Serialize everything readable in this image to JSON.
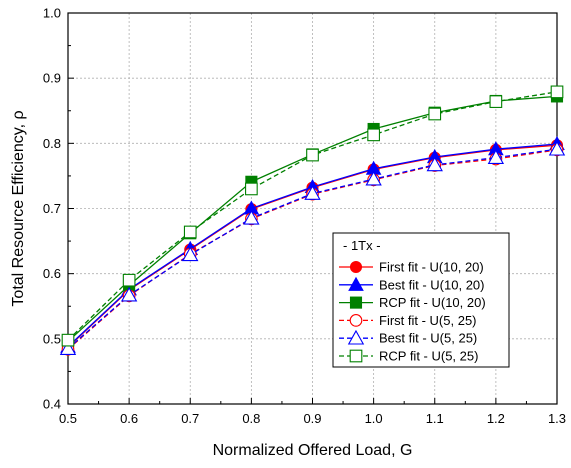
{
  "chart_data": {
    "type": "line",
    "xlabel": "Normalized Offered Load, G",
    "ylabel": "Total Resource Efficiency, ρ",
    "xlim": [
      0.5,
      1.3
    ],
    "ylim": [
      0.4,
      1.0
    ],
    "xticks": [
      "0.5",
      "0.6",
      "0.7",
      "0.8",
      "0.9",
      "1.0",
      "1.1",
      "1.2",
      "1.3"
    ],
    "yticks": [
      "0.4",
      "0.5",
      "0.6",
      "0.7",
      "0.8",
      "0.9",
      "1.0"
    ],
    "grid": true,
    "legend": {
      "title": "- 1Tx -",
      "placement": "lower-right"
    },
    "x": [
      0.5,
      0.6,
      0.7,
      0.8,
      0.9,
      1.0,
      1.1,
      1.2,
      1.3
    ],
    "series": [
      {
        "name": "First fit - U(10, 20)",
        "color": "#ff0000",
        "marker": "circle",
        "filled": true,
        "dashed": false,
        "values": [
          0.487,
          0.575,
          0.637,
          0.699,
          0.732,
          0.76,
          0.778,
          0.79,
          0.797
        ]
      },
      {
        "name": "Best fit - U(10, 20)",
        "color": "#0000ff",
        "marker": "triangle",
        "filled": true,
        "dashed": false,
        "values": [
          0.488,
          0.576,
          0.638,
          0.7,
          0.733,
          0.761,
          0.779,
          0.791,
          0.799
        ]
      },
      {
        "name": "RCP fit - U(10, 20)",
        "color": "#008000",
        "marker": "square",
        "filled": true,
        "dashed": false,
        "values": [
          0.496,
          0.582,
          0.662,
          0.741,
          0.783,
          0.822,
          0.847,
          0.865,
          0.872
        ]
      },
      {
        "name": "First fit - U(5, 25)",
        "color": "#ff0000",
        "marker": "circle",
        "filled": false,
        "dashed": true,
        "values": [
          0.484,
          0.566,
          0.63,
          0.684,
          0.722,
          0.744,
          0.766,
          0.776,
          0.79
        ]
      },
      {
        "name": "Best fit - U(5, 25)",
        "color": "#0000ff",
        "marker": "triangle",
        "filled": false,
        "dashed": true,
        "values": [
          0.485,
          0.567,
          0.629,
          0.685,
          0.723,
          0.745,
          0.767,
          0.778,
          0.791
        ]
      },
      {
        "name": "RCP fit - U(5, 25)",
        "color": "#008000",
        "marker": "square",
        "filled": false,
        "dashed": true,
        "values": [
          0.498,
          0.59,
          0.664,
          0.73,
          0.782,
          0.813,
          0.845,
          0.864,
          0.879
        ]
      }
    ]
  }
}
